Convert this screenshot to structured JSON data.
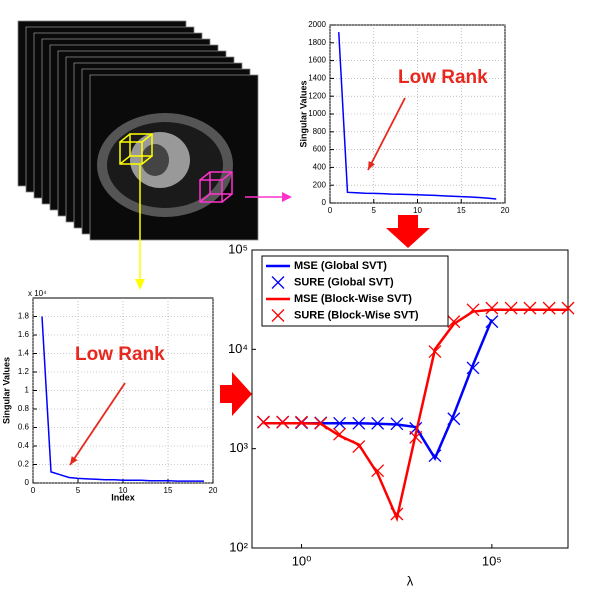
{
  "chart_data": [
    {
      "type": "line",
      "ylabel": "Singular Values",
      "annotation": "Low Rank",
      "x": [
        1,
        2,
        3,
        4,
        5,
        6,
        7,
        8,
        9,
        10,
        11,
        12,
        13,
        14,
        15,
        16,
        17,
        18,
        19
      ],
      "series": [
        {
          "color": "#0000ff",
          "values": [
            1920,
            120,
            115,
            110,
            108,
            105,
            100,
            98,
            95,
            92,
            88,
            85,
            80,
            76,
            72,
            68,
            62,
            55,
            45
          ]
        }
      ],
      "xlim": [
        0,
        20
      ],
      "xticks": [
        0,
        5,
        10,
        15,
        20
      ],
      "ylim": [
        0,
        2000
      ],
      "yticks": [
        0,
        200,
        400,
        600,
        800,
        1000,
        1200,
        1400,
        1600,
        1800,
        2000
      ],
      "grid": true
    },
    {
      "type": "line",
      "ylabel": "Singular Values",
      "xlabel": "Index",
      "annotation": "Low Rank",
      "y_scale_label": "x 10⁴",
      "x": [
        1,
        2,
        3,
        4,
        5,
        6,
        7,
        8,
        9,
        10,
        11,
        12,
        13,
        14,
        15,
        16,
        17,
        18,
        19
      ],
      "series": [
        {
          "color": "#0000ff",
          "values": [
            1.8,
            0.12,
            0.09,
            0.06,
            0.05,
            0.045,
            0.04,
            0.035,
            0.035,
            0.03,
            0.03,
            0.03,
            0.025,
            0.025,
            0.025,
            0.02,
            0.02,
            0.02,
            0.02
          ]
        }
      ],
      "xlim": [
        0,
        20
      ],
      "xticks": [
        0,
        5,
        10,
        15,
        20
      ],
      "ylim": [
        0,
        2
      ],
      "yticks": [
        0,
        0.2,
        0.4,
        0.6,
        0.8,
        1,
        1.2,
        1.4,
        1.6,
        1.8
      ],
      "grid": true
    },
    {
      "type": "line",
      "xlabel": "λ",
      "xscale": "log",
      "yscale": "log",
      "legend": "upper left",
      "x": [
        0.1,
        0.32,
        1,
        3.2,
        10,
        32,
        100,
        320,
        1000,
        3200,
        10000,
        32000,
        100000,
        320000,
        1000000,
        3200000,
        10000000
      ],
      "series": [
        {
          "name": "MSE (Global SVT)",
          "color": "#0000ff",
          "style": "line",
          "values": [
            1800,
            1800,
            1800,
            1800,
            1800,
            1800,
            1780,
            1750,
            1650,
            800,
            2200,
            7000,
            20000,
            null,
            null,
            null,
            null
          ]
        },
        {
          "name": "SURE (Global SVT)",
          "color": "#0000ff",
          "style": "marker",
          "values": [
            1850,
            1850,
            1820,
            1820,
            1800,
            1800,
            1800,
            1780,
            1600,
            850,
            2000,
            6500,
            19000,
            null,
            null,
            null,
            null
          ]
        },
        {
          "name": "MSE (Block-Wise SVT)",
          "color": "#ff0000",
          "style": "line",
          "values": [
            1800,
            1800,
            1800,
            1780,
            1350,
            1100,
            560,
            200,
            1400,
            10000,
            18000,
            24000,
            25000,
            25000,
            25000,
            25000,
            25000
          ]
        },
        {
          "name": "SURE (Block-Wise SVT)",
          "color": "#ff0000",
          "style": "marker",
          "values": [
            1850,
            1850,
            1850,
            1800,
            1400,
            1050,
            600,
            220,
            1300,
            9500,
            19000,
            25000,
            26000,
            26000,
            26000,
            26000,
            26000
          ]
        }
      ],
      "xlim": [
        0.05,
        10000000
      ],
      "xticks": [
        {
          "value": 1,
          "label": "10⁰"
        },
        {
          "value": 100000,
          "label": "10⁵"
        }
      ],
      "ylim": [
        100,
        100000
      ],
      "yticks": [
        {
          "value": 100,
          "label": "10²"
        },
        {
          "value": 1000,
          "label": "10³"
        },
        {
          "value": 10000,
          "label": "10⁴"
        },
        {
          "value": 100000,
          "label": "10⁵"
        }
      ]
    }
  ]
}
